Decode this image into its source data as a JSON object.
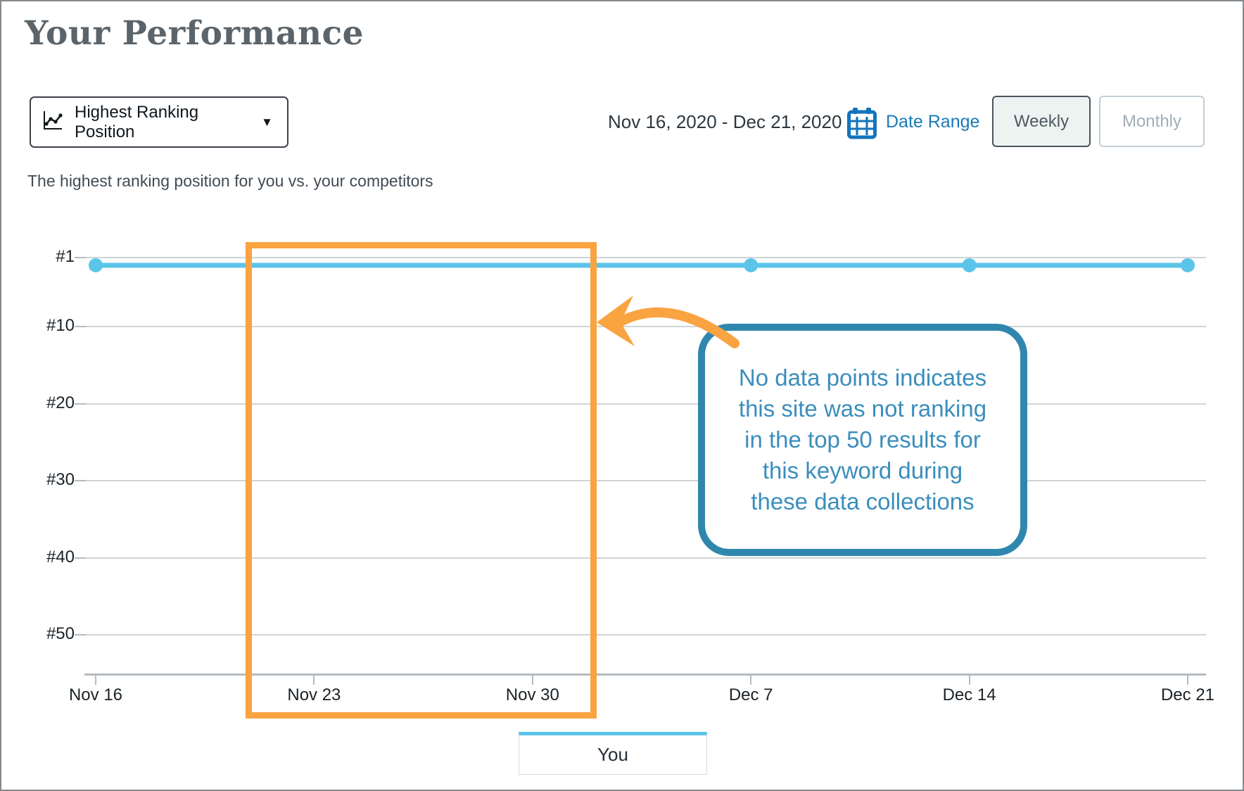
{
  "header": {
    "title": "Your Performance"
  },
  "toolbar": {
    "metric_dropdown": {
      "label": "Highest Ranking Position"
    },
    "date_range_value": "Nov 16, 2020 - Dec 21, 2020",
    "date_range_link": "Date Range",
    "weekly_label": "Weekly",
    "monthly_label": "Monthly",
    "selected_interval": "Weekly"
  },
  "subtitle": "The highest ranking position for you vs. your competitors",
  "chart_data": {
    "type": "line",
    "x": [
      "Nov 16",
      "Nov 23",
      "Nov 30",
      "Dec 7",
      "Dec 14",
      "Dec 21"
    ],
    "yticks": {
      "labels": [
        "#1",
        "#10",
        "#20",
        "#30",
        "#40",
        "#50"
      ],
      "ranks": [
        1,
        10,
        20,
        30,
        40,
        50
      ]
    },
    "y_axis_inverted": true,
    "ylim": [
      1,
      55
    ],
    "grid": true,
    "legend_position": "bottom",
    "series": [
      {
        "name": "You",
        "values": [
          2,
          null,
          null,
          2,
          2,
          2
        ],
        "color": "#5bc4e9"
      }
    ]
  },
  "annotation": {
    "highlight_region": {
      "x_from": "Nov 23",
      "x_to": "Nov 30"
    },
    "callout_text": "No data points indicates\nthis site was not ranking\nin the top 50 results for\nthis keyword during\nthese data collections"
  },
  "legend": {
    "items": [
      {
        "label": "You",
        "color": "#5bc4e9"
      }
    ]
  },
  "colors": {
    "accent_blue": "#5bc4e9",
    "link_blue": "#1a79b8",
    "callout_border_blue": "#3087ae",
    "callout_text_blue": "#3a8ebd",
    "highlight_orange": "#f9a341",
    "title_gray": "#5b646a"
  }
}
